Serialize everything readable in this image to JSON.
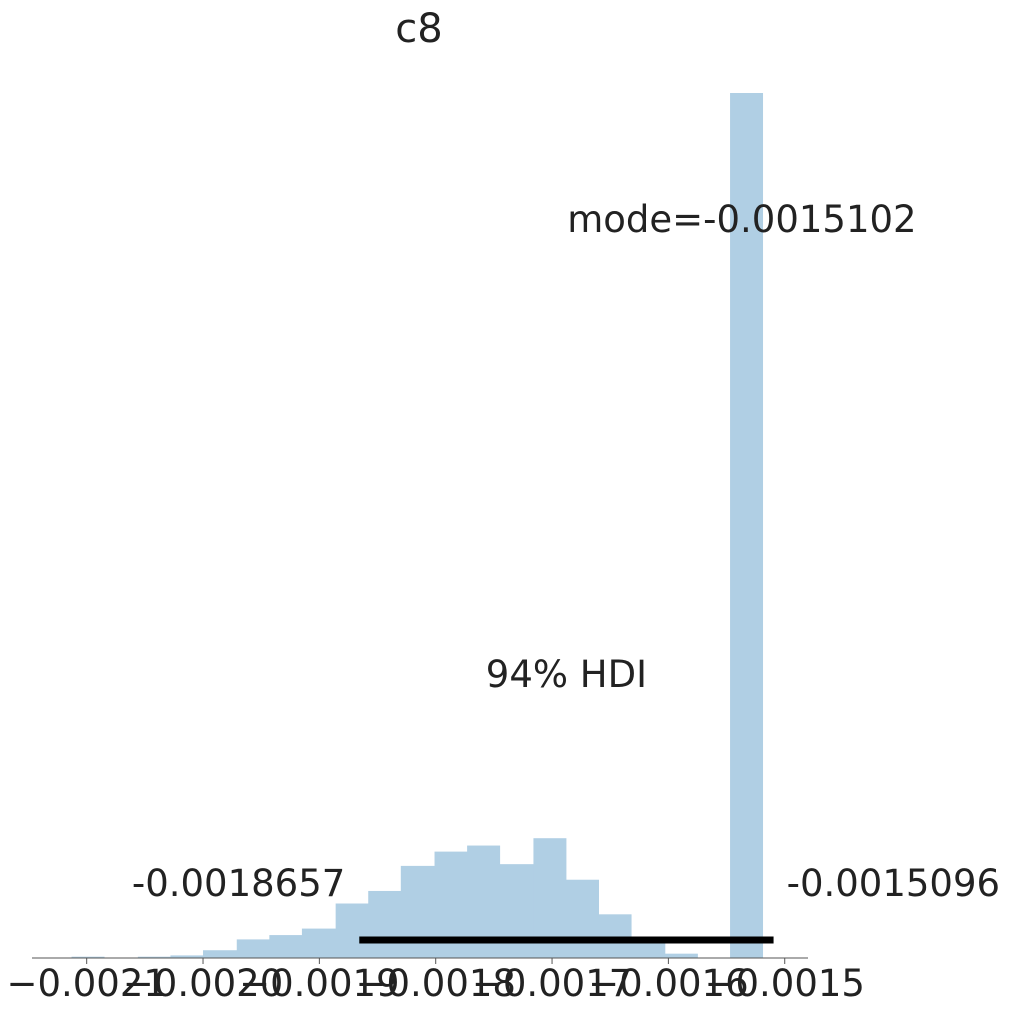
{
  "chart_data": {
    "type": "bar",
    "title": "c8",
    "xlabel": "",
    "ylabel": "",
    "xlim": [
      -0.002147,
      -0.00148
    ],
    "ylim": [
      0,
      20.0
    ],
    "x_ticks": [
      -0.0021,
      -0.002,
      -0.0019,
      -0.0018,
      -0.0017,
      -0.0016,
      -0.0015
    ],
    "x_tick_labels": [
      "−0.0021",
      "−0.0020",
      "−0.0019",
      "−0.0018",
      "−0.0017",
      "−0.0016",
      "−0.0015"
    ],
    "bin_edges": [
      -0.002113,
      -0.002085,
      -0.002056,
      -0.002028,
      -0.002,
      -0.001971,
      -0.001943,
      -0.001915,
      -0.001886,
      -0.001858,
      -0.00183,
      -0.001801,
      -0.001773,
      -0.001745,
      -0.001716,
      -0.001688,
      -0.00166,
      -0.001632,
      -0.001603,
      -0.001575,
      -0.001547,
      -0.001519
    ],
    "counts": [
      0.03,
      0.0,
      0.03,
      0.06,
      0.18,
      0.43,
      0.53,
      0.68,
      1.26,
      1.55,
      2.13,
      2.46,
      2.6,
      2.17,
      2.77,
      1.81,
      1.01,
      0.45,
      0.1,
      0.0,
      20.0
    ],
    "grid": false,
    "bar_color": "#b0cfe4",
    "mode": {
      "x": -0.0015102,
      "label": "mode=-0.0015102"
    },
    "hdi": {
      "label": "94% HDI",
      "low": -0.0018657,
      "high": -0.0015096,
      "low_label": "-0.0018657",
      "high_label": "-0.0015096",
      "color": "#000000"
    }
  }
}
